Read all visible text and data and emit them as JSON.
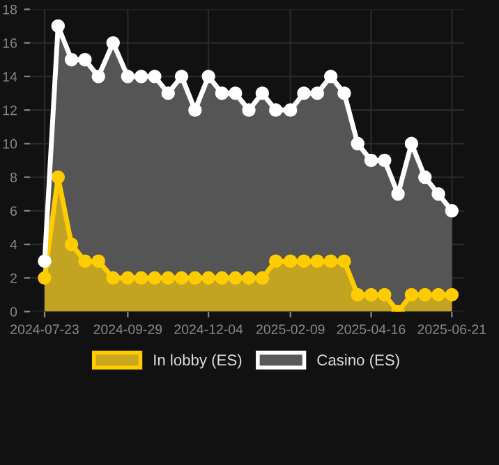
{
  "chart_data": {
    "type": "area",
    "x": [
      "2024-07-23",
      "2024-08-03",
      "2024-08-14",
      "2024-08-25",
      "2024-09-05",
      "2024-09-17",
      "2024-09-29",
      "2024-10-10",
      "2024-10-21",
      "2024-11-01",
      "2024-11-12",
      "2024-11-23",
      "2024-12-04",
      "2024-12-15",
      "2024-12-26",
      "2025-01-06",
      "2025-01-17",
      "2025-01-28",
      "2025-02-09",
      "2025-02-20",
      "2025-03-03",
      "2025-03-14",
      "2025-03-25",
      "2025-04-05",
      "2025-04-16",
      "2025-04-27",
      "2025-05-08",
      "2025-05-19",
      "2025-05-30",
      "2025-06-10",
      "2025-06-21"
    ],
    "series": [
      {
        "name": "In lobby (ES)",
        "color": "#ffcc00",
        "values": [
          2,
          8,
          4,
          3,
          3,
          2,
          2,
          2,
          2,
          2,
          2,
          2,
          2,
          2,
          2,
          2,
          2,
          3,
          3,
          3,
          3,
          3,
          3,
          1,
          1,
          1,
          0,
          1,
          1,
          1,
          1
        ]
      },
      {
        "name": "Casino (ES)",
        "color": "#ffffff",
        "values": [
          3,
          17,
          15,
          15,
          14,
          16,
          14,
          14,
          14,
          13,
          14,
          12,
          14,
          13,
          13,
          12,
          13,
          12,
          12,
          13,
          13,
          14,
          13,
          10,
          9,
          9,
          7,
          10,
          8,
          7,
          6
        ]
      }
    ],
    "xlim": [
      "2024-07-11",
      "2025-07-01"
    ],
    "xticks": [
      "2024-07-23",
      "2024-09-29",
      "2024-12-04",
      "2025-02-09",
      "2025-04-16",
      "2025-06-21"
    ],
    "ylim": [
      0,
      18
    ],
    "yticks": [
      0,
      2,
      4,
      6,
      8,
      10,
      12,
      14,
      16,
      18
    ],
    "grid": true,
    "legend": "bottom",
    "marker": "circle",
    "line_style": "solid"
  }
}
